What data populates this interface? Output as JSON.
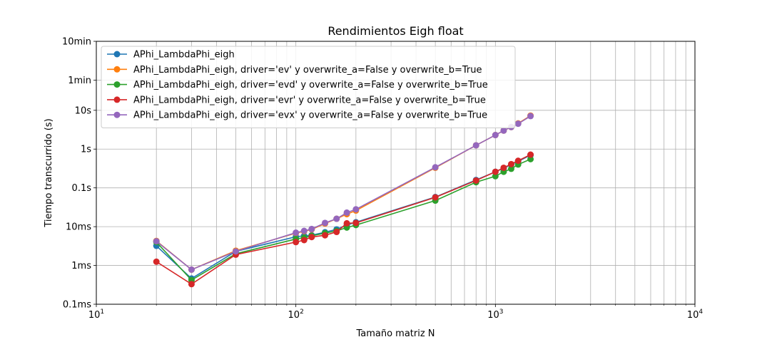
{
  "chart_data": {
    "type": "line",
    "title": "Rendimientos Eigh float",
    "xlabel": "Tamaño matriz N",
    "ylabel": "Tiempo transcurrido (s)",
    "xscale": "log",
    "yscale": "log",
    "xlim": [
      10,
      10000
    ],
    "ylim": [
      0.0001,
      600
    ],
    "grid": true,
    "legend_position": "upper-left",
    "x_tick_labels": [
      {
        "value": 10,
        "base": "10",
        "exp": "1"
      },
      {
        "value": 100,
        "base": "10",
        "exp": "2"
      },
      {
        "value": 1000,
        "base": "10",
        "exp": "3"
      },
      {
        "value": 10000,
        "base": "10",
        "exp": "4"
      }
    ],
    "y_tick_labels": [
      {
        "value": 0.0001,
        "label": "0.1ms"
      },
      {
        "value": 0.001,
        "label": "1ms"
      },
      {
        "value": 0.01,
        "label": "10ms"
      },
      {
        "value": 0.1,
        "label": "0.1s"
      },
      {
        "value": 1,
        "label": "1s"
      },
      {
        "value": 10,
        "label": "10s"
      },
      {
        "value": 60,
        "label": "1min"
      },
      {
        "value": 600,
        "label": "10min"
      }
    ],
    "x": [
      20,
      30,
      50,
      100,
      110,
      120,
      140,
      160,
      180,
      200,
      500,
      800,
      1000,
      1100,
      1200,
      1300,
      1500
    ],
    "series": [
      {
        "name": "APhi_LambdaPhi_eigh",
        "color": "#1f77b4",
        "values": [
          0.0032,
          0.00046,
          0.0023,
          0.0055,
          0.0058,
          0.006,
          0.0072,
          0.0085,
          0.011,
          0.013,
          0.058,
          0.16,
          0.26,
          0.32,
          0.4,
          0.48,
          0.7
        ]
      },
      {
        "name": "APhi_LambdaPhi_eigh, driver='ev' y overwrite_a=False y overwrite_b=True",
        "color": "#ff7f0e",
        "values": [
          0.0043,
          0.00078,
          0.0024,
          0.0068,
          0.0076,
          0.0085,
          0.012,
          0.016,
          0.021,
          0.026,
          0.33,
          1.25,
          2.3,
          3.0,
          3.7,
          4.6,
          7.3
        ]
      },
      {
        "name": "APhi_LambdaPhi_eigh, driver='evd' y overwrite_a=False y overwrite_b=True",
        "color": "#2ca02c",
        "values": [
          0.004,
          0.00042,
          0.002,
          0.0048,
          0.0052,
          0.0058,
          0.0068,
          0.0078,
          0.0095,
          0.011,
          0.047,
          0.14,
          0.2,
          0.26,
          0.31,
          0.4,
          0.55
        ]
      },
      {
        "name": "APhi_LambdaPhi_eigh, driver='evr' y overwrite_a=False y overwrite_b=True",
        "color": "#d62728",
        "values": [
          0.00125,
          0.00033,
          0.0019,
          0.004,
          0.0045,
          0.0054,
          0.006,
          0.0073,
          0.0122,
          0.0125,
          0.057,
          0.155,
          0.26,
          0.33,
          0.41,
          0.5,
          0.72
        ]
      },
      {
        "name": "APhi_LambdaPhi_eigh, driver='evx' y overwrite_a=False y overwrite_b=True",
        "color": "#9467bd",
        "values": [
          0.0042,
          0.00078,
          0.0023,
          0.007,
          0.0078,
          0.0087,
          0.0125,
          0.016,
          0.023,
          0.028,
          0.34,
          1.25,
          2.3,
          3.0,
          3.7,
          4.5,
          7.1
        ]
      }
    ]
  }
}
